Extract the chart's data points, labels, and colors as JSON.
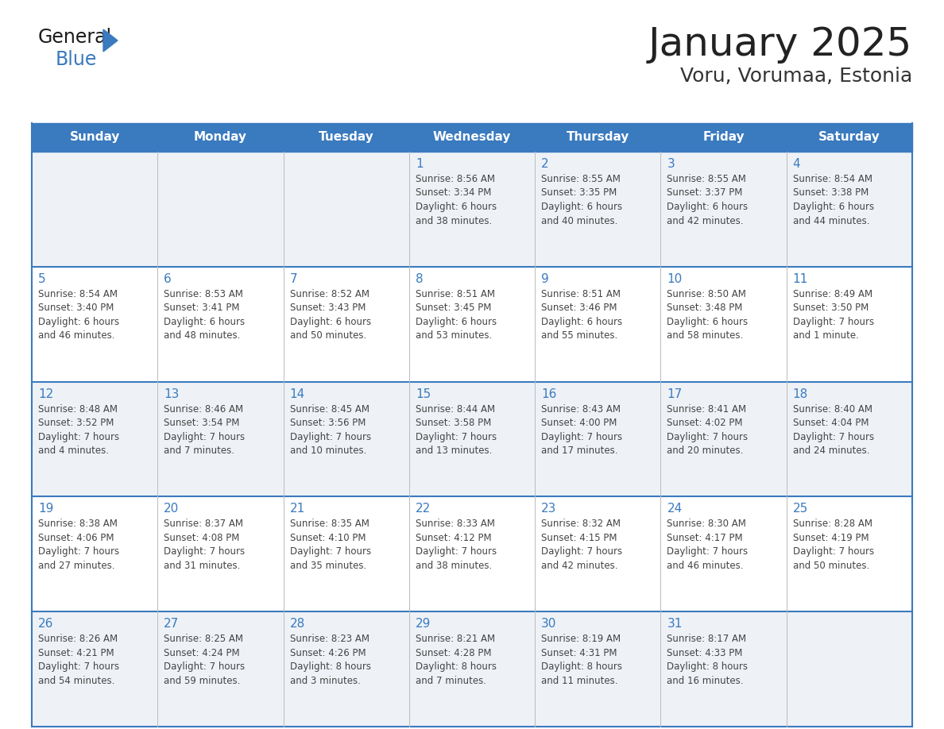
{
  "title": "January 2025",
  "subtitle": "Voru, Vorumaa, Estonia",
  "days_of_week": [
    "Sunday",
    "Monday",
    "Tuesday",
    "Wednesday",
    "Thursday",
    "Friday",
    "Saturday"
  ],
  "header_bg": "#3a7abf",
  "header_text": "#ffffff",
  "row_bg_light": "#eef2f7",
  "row_bg_white": "#ffffff",
  "border_color": "#3a7abf",
  "day_num_color": "#3a7abf",
  "text_color": "#444444",
  "calendar_data": [
    [
      null,
      null,
      null,
      {
        "day": 1,
        "sunrise": "8:56 AM",
        "sunset": "3:34 PM",
        "daylight": "6 hours and 38 minutes."
      },
      {
        "day": 2,
        "sunrise": "8:55 AM",
        "sunset": "3:35 PM",
        "daylight": "6 hours and 40 minutes."
      },
      {
        "day": 3,
        "sunrise": "8:55 AM",
        "sunset": "3:37 PM",
        "daylight": "6 hours and 42 minutes."
      },
      {
        "day": 4,
        "sunrise": "8:54 AM",
        "sunset": "3:38 PM",
        "daylight": "6 hours and 44 minutes."
      }
    ],
    [
      {
        "day": 5,
        "sunrise": "8:54 AM",
        "sunset": "3:40 PM",
        "daylight": "6 hours and 46 minutes."
      },
      {
        "day": 6,
        "sunrise": "8:53 AM",
        "sunset": "3:41 PM",
        "daylight": "6 hours and 48 minutes."
      },
      {
        "day": 7,
        "sunrise": "8:52 AM",
        "sunset": "3:43 PM",
        "daylight": "6 hours and 50 minutes."
      },
      {
        "day": 8,
        "sunrise": "8:51 AM",
        "sunset": "3:45 PM",
        "daylight": "6 hours and 53 minutes."
      },
      {
        "day": 9,
        "sunrise": "8:51 AM",
        "sunset": "3:46 PM",
        "daylight": "6 hours and 55 minutes."
      },
      {
        "day": 10,
        "sunrise": "8:50 AM",
        "sunset": "3:48 PM",
        "daylight": "6 hours and 58 minutes."
      },
      {
        "day": 11,
        "sunrise": "8:49 AM",
        "sunset": "3:50 PM",
        "daylight": "7 hours and 1 minute."
      }
    ],
    [
      {
        "day": 12,
        "sunrise": "8:48 AM",
        "sunset": "3:52 PM",
        "daylight": "7 hours and 4 minutes."
      },
      {
        "day": 13,
        "sunrise": "8:46 AM",
        "sunset": "3:54 PM",
        "daylight": "7 hours and 7 minutes."
      },
      {
        "day": 14,
        "sunrise": "8:45 AM",
        "sunset": "3:56 PM",
        "daylight": "7 hours and 10 minutes."
      },
      {
        "day": 15,
        "sunrise": "8:44 AM",
        "sunset": "3:58 PM",
        "daylight": "7 hours and 13 minutes."
      },
      {
        "day": 16,
        "sunrise": "8:43 AM",
        "sunset": "4:00 PM",
        "daylight": "7 hours and 17 minutes."
      },
      {
        "day": 17,
        "sunrise": "8:41 AM",
        "sunset": "4:02 PM",
        "daylight": "7 hours and 20 minutes."
      },
      {
        "day": 18,
        "sunrise": "8:40 AM",
        "sunset": "4:04 PM",
        "daylight": "7 hours and 24 minutes."
      }
    ],
    [
      {
        "day": 19,
        "sunrise": "8:38 AM",
        "sunset": "4:06 PM",
        "daylight": "7 hours and 27 minutes."
      },
      {
        "day": 20,
        "sunrise": "8:37 AM",
        "sunset": "4:08 PM",
        "daylight": "7 hours and 31 minutes."
      },
      {
        "day": 21,
        "sunrise": "8:35 AM",
        "sunset": "4:10 PM",
        "daylight": "7 hours and 35 minutes."
      },
      {
        "day": 22,
        "sunrise": "8:33 AM",
        "sunset": "4:12 PM",
        "daylight": "7 hours and 38 minutes."
      },
      {
        "day": 23,
        "sunrise": "8:32 AM",
        "sunset": "4:15 PM",
        "daylight": "7 hours and 42 minutes."
      },
      {
        "day": 24,
        "sunrise": "8:30 AM",
        "sunset": "4:17 PM",
        "daylight": "7 hours and 46 minutes."
      },
      {
        "day": 25,
        "sunrise": "8:28 AM",
        "sunset": "4:19 PM",
        "daylight": "7 hours and 50 minutes."
      }
    ],
    [
      {
        "day": 26,
        "sunrise": "8:26 AM",
        "sunset": "4:21 PM",
        "daylight": "7 hours and 54 minutes."
      },
      {
        "day": 27,
        "sunrise": "8:25 AM",
        "sunset": "4:24 PM",
        "daylight": "7 hours and 59 minutes."
      },
      {
        "day": 28,
        "sunrise": "8:23 AM",
        "sunset": "4:26 PM",
        "daylight": "8 hours and 3 minutes."
      },
      {
        "day": 29,
        "sunrise": "8:21 AM",
        "sunset": "4:28 PM",
        "daylight": "8 hours and 7 minutes."
      },
      {
        "day": 30,
        "sunrise": "8:19 AM",
        "sunset": "4:31 PM",
        "daylight": "8 hours and 11 minutes."
      },
      {
        "day": 31,
        "sunrise": "8:17 AM",
        "sunset": "4:33 PM",
        "daylight": "8 hours and 16 minutes."
      },
      null
    ]
  ],
  "fig_width": 11.88,
  "fig_height": 9.18,
  "dpi": 100
}
